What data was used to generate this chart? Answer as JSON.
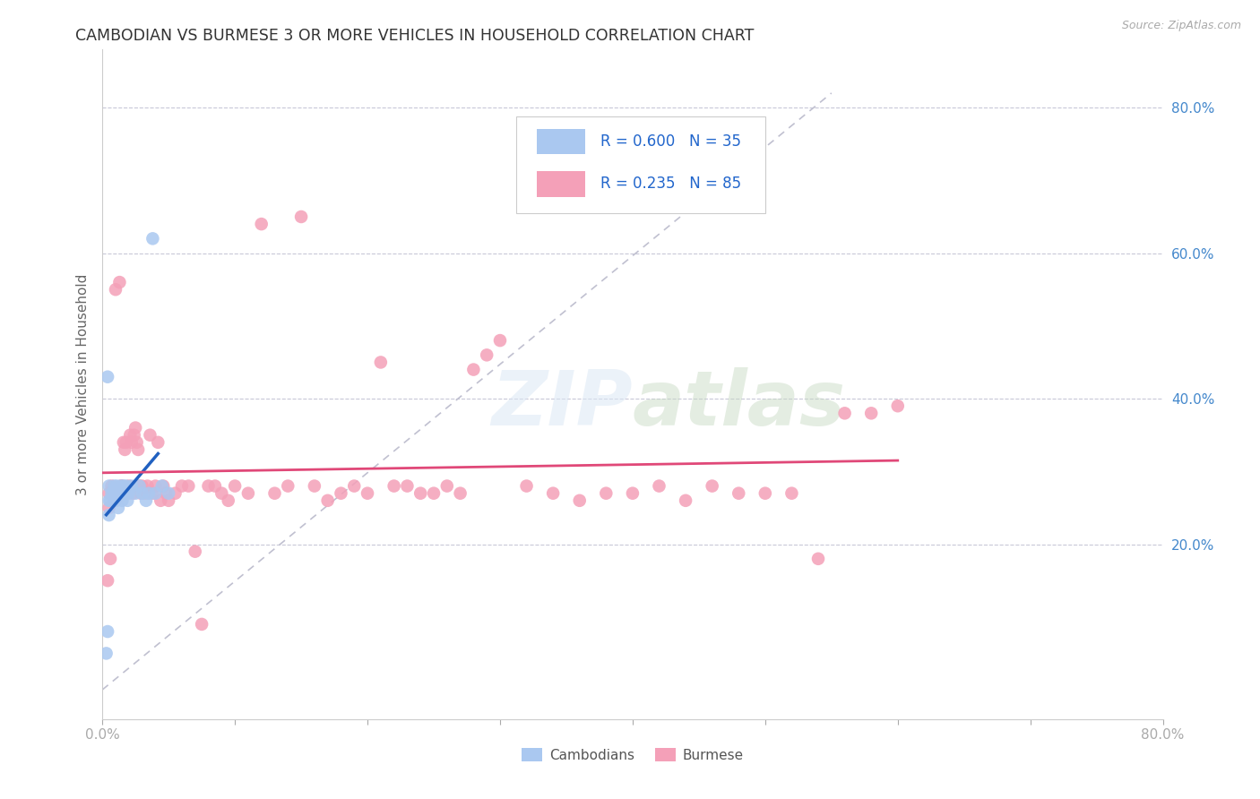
{
  "title": "CAMBODIAN VS BURMESE 3 OR MORE VEHICLES IN HOUSEHOLD CORRELATION CHART",
  "source": "Source: ZipAtlas.com",
  "ylabel": "3 or more Vehicles in Household",
  "watermark": "ZIPatlas",
  "xlim": [
    0.0,
    0.8
  ],
  "ylim": [
    -0.04,
    0.88
  ],
  "cambodian_color": "#aac8f0",
  "burmese_color": "#f4a0b8",
  "cambodian_line_color": "#2060c0",
  "burmese_line_color": "#e04878",
  "diagonal_color": "#c0c0d0",
  "title_color": "#333333",
  "right_tick_color": "#4488cc",
  "legend_text_color": "#2266cc",
  "background_color": "#ffffff",
  "cam_x": [
    0.003,
    0.004,
    0.004,
    0.005,
    0.005,
    0.005,
    0.006,
    0.007,
    0.008,
    0.009,
    0.01,
    0.01,
    0.011,
    0.012,
    0.012,
    0.013,
    0.014,
    0.015,
    0.015,
    0.016,
    0.017,
    0.018,
    0.018,
    0.019,
    0.02,
    0.022,
    0.025,
    0.028,
    0.03,
    0.033,
    0.035,
    0.038,
    0.04,
    0.045,
    0.05
  ],
  "cam_y": [
    0.05,
    0.08,
    0.43,
    0.24,
    0.26,
    0.28,
    0.26,
    0.27,
    0.27,
    0.28,
    0.27,
    0.26,
    0.28,
    0.27,
    0.25,
    0.27,
    0.28,
    0.26,
    0.27,
    0.28,
    0.27,
    0.27,
    0.28,
    0.26,
    0.27,
    0.28,
    0.27,
    0.28,
    0.27,
    0.26,
    0.27,
    0.62,
    0.27,
    0.28,
    0.27
  ],
  "bur_x": [
    0.004,
    0.005,
    0.005,
    0.006,
    0.007,
    0.008,
    0.009,
    0.01,
    0.01,
    0.011,
    0.012,
    0.013,
    0.014,
    0.015,
    0.015,
    0.016,
    0.017,
    0.018,
    0.019,
    0.02,
    0.021,
    0.022,
    0.023,
    0.024,
    0.025,
    0.026,
    0.027,
    0.028,
    0.029,
    0.03,
    0.032,
    0.034,
    0.035,
    0.036,
    0.038,
    0.04,
    0.042,
    0.044,
    0.046,
    0.048,
    0.05,
    0.055,
    0.06,
    0.065,
    0.07,
    0.075,
    0.08,
    0.085,
    0.09,
    0.095,
    0.1,
    0.11,
    0.12,
    0.13,
    0.14,
    0.15,
    0.16,
    0.17,
    0.18,
    0.19,
    0.2,
    0.21,
    0.22,
    0.23,
    0.24,
    0.25,
    0.26,
    0.27,
    0.28,
    0.29,
    0.3,
    0.32,
    0.34,
    0.36,
    0.38,
    0.4,
    0.42,
    0.44,
    0.46,
    0.48,
    0.5,
    0.52,
    0.54,
    0.56,
    0.58,
    0.6
  ],
  "bur_y": [
    0.15,
    0.25,
    0.27,
    0.18,
    0.28,
    0.27,
    0.26,
    0.55,
    0.26,
    0.27,
    0.27,
    0.56,
    0.28,
    0.27,
    0.28,
    0.34,
    0.33,
    0.34,
    0.27,
    0.28,
    0.35,
    0.34,
    0.27,
    0.35,
    0.36,
    0.34,
    0.33,
    0.28,
    0.27,
    0.28,
    0.27,
    0.28,
    0.27,
    0.35,
    0.27,
    0.28,
    0.34,
    0.26,
    0.28,
    0.27,
    0.26,
    0.27,
    0.28,
    0.28,
    0.19,
    0.09,
    0.28,
    0.28,
    0.27,
    0.26,
    0.28,
    0.27,
    0.64,
    0.27,
    0.28,
    0.65,
    0.28,
    0.26,
    0.27,
    0.28,
    0.27,
    0.45,
    0.28,
    0.28,
    0.27,
    0.27,
    0.28,
    0.27,
    0.44,
    0.46,
    0.48,
    0.28,
    0.27,
    0.26,
    0.27,
    0.27,
    0.28,
    0.26,
    0.28,
    0.27,
    0.27,
    0.27,
    0.18,
    0.38,
    0.38,
    0.39
  ]
}
